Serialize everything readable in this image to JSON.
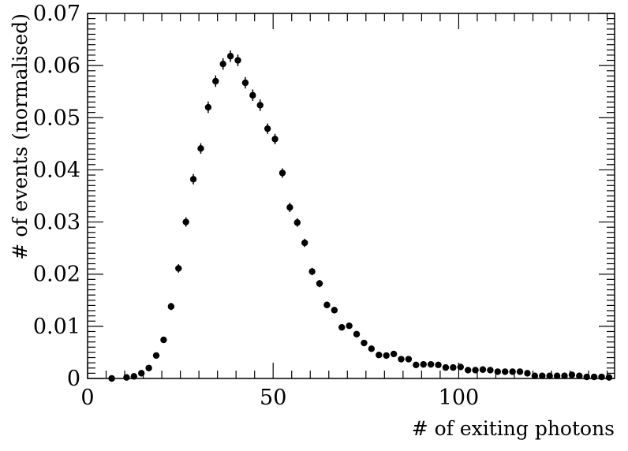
{
  "chart_data": {
    "type": "scatter",
    "xlabel": "# of exiting photons",
    "ylabel": "# of events (normalised)",
    "xlim": [
      0,
      142
    ],
    "ylim": [
      0,
      0.07
    ],
    "x_ticks": [
      0,
      50,
      100
    ],
    "y_ticks": [
      0,
      0.01,
      0.02,
      0.03,
      0.04,
      0.05,
      0.06,
      0.07
    ],
    "x_tick_labels": [
      "0",
      "50",
      "100"
    ],
    "y_tick_labels": [
      "0",
      "0.01",
      "0.02",
      "0.03",
      "0.04",
      "0.05",
      "0.06",
      "0.07"
    ],
    "grid": false,
    "marker": "filled-circle-with-error-bars",
    "series": [
      {
        "x": [
          6.5,
          10.5,
          12.5,
          14.5,
          16.5,
          18.5,
          20.5,
          22.5,
          24.5,
          26.5,
          28.5,
          30.5,
          32.5,
          34.5,
          36.5,
          38.5,
          40.5,
          42.5,
          44.5,
          46.5,
          48.5,
          50.5,
          52.5,
          54.5,
          56.5,
          58.5,
          60.5,
          62.5,
          64.5,
          66.5,
          68.5,
          70.5,
          72.5,
          74.5,
          76.5,
          78.5,
          80.5,
          82.5,
          84.5,
          86.5,
          88.5,
          90.5,
          92.5,
          94.5,
          96.5,
          98.5,
          100.5,
          102.5,
          104.5,
          106.5,
          108.5,
          110.5,
          112.5,
          114.5,
          116.5,
          118.5,
          120.5,
          122.5,
          124.5,
          126.5,
          128.5,
          130.5,
          132.5,
          134.5,
          136.5,
          138.5,
          140.5
        ],
        "y": [
          0.0,
          0.0002,
          0.0004,
          0.001,
          0.002,
          0.0044,
          0.0074,
          0.0138,
          0.0211,
          0.03,
          0.0382,
          0.0441,
          0.052,
          0.057,
          0.0603,
          0.0618,
          0.061,
          0.0567,
          0.0543,
          0.0524,
          0.0479,
          0.0459,
          0.0394,
          0.0328,
          0.0299,
          0.026,
          0.0205,
          0.0182,
          0.0141,
          0.0131,
          0.0098,
          0.0101,
          0.0085,
          0.0068,
          0.0057,
          0.0045,
          0.0044,
          0.0047,
          0.0037,
          0.0037,
          0.0026,
          0.0027,
          0.0027,
          0.0026,
          0.0021,
          0.0021,
          0.0022,
          0.0016,
          0.0016,
          0.0017,
          0.0016,
          0.0013,
          0.0013,
          0.0013,
          0.0013,
          0.001,
          0.0005,
          0.0005,
          0.0005,
          0.0005,
          0.0005,
          0.0007,
          0.0005,
          0.0003,
          0.0003,
          0.0003,
          0.0002
        ],
        "yerr": [
          0.0002,
          0.0002,
          0.0003,
          0.0004,
          0.0004,
          0.0005,
          0.0006,
          0.0007,
          0.0008,
          0.0009,
          0.001,
          0.001,
          0.0011,
          0.0011,
          0.0011,
          0.0011,
          0.0011,
          0.0011,
          0.0011,
          0.0011,
          0.001,
          0.001,
          0.0009,
          0.0009,
          0.0008,
          0.0008,
          0.0007,
          0.0007,
          0.0006,
          0.0006,
          0.0005,
          0.0005,
          0.0005,
          0.0004,
          0.0004,
          0.0004,
          0.0004,
          0.0004,
          0.0003,
          0.0003,
          0.0003,
          0.0003,
          0.0003,
          0.0003,
          0.0003,
          0.0003,
          0.0003,
          0.0002,
          0.0002,
          0.0002,
          0.0002,
          0.0002,
          0.0002,
          0.0002,
          0.0002,
          0.0002,
          0.0002,
          0.0002,
          0.0002,
          0.0002,
          0.0002,
          0.0002,
          0.0002,
          0.0002,
          0.0002,
          0.0002,
          0.0002
        ]
      }
    ]
  }
}
